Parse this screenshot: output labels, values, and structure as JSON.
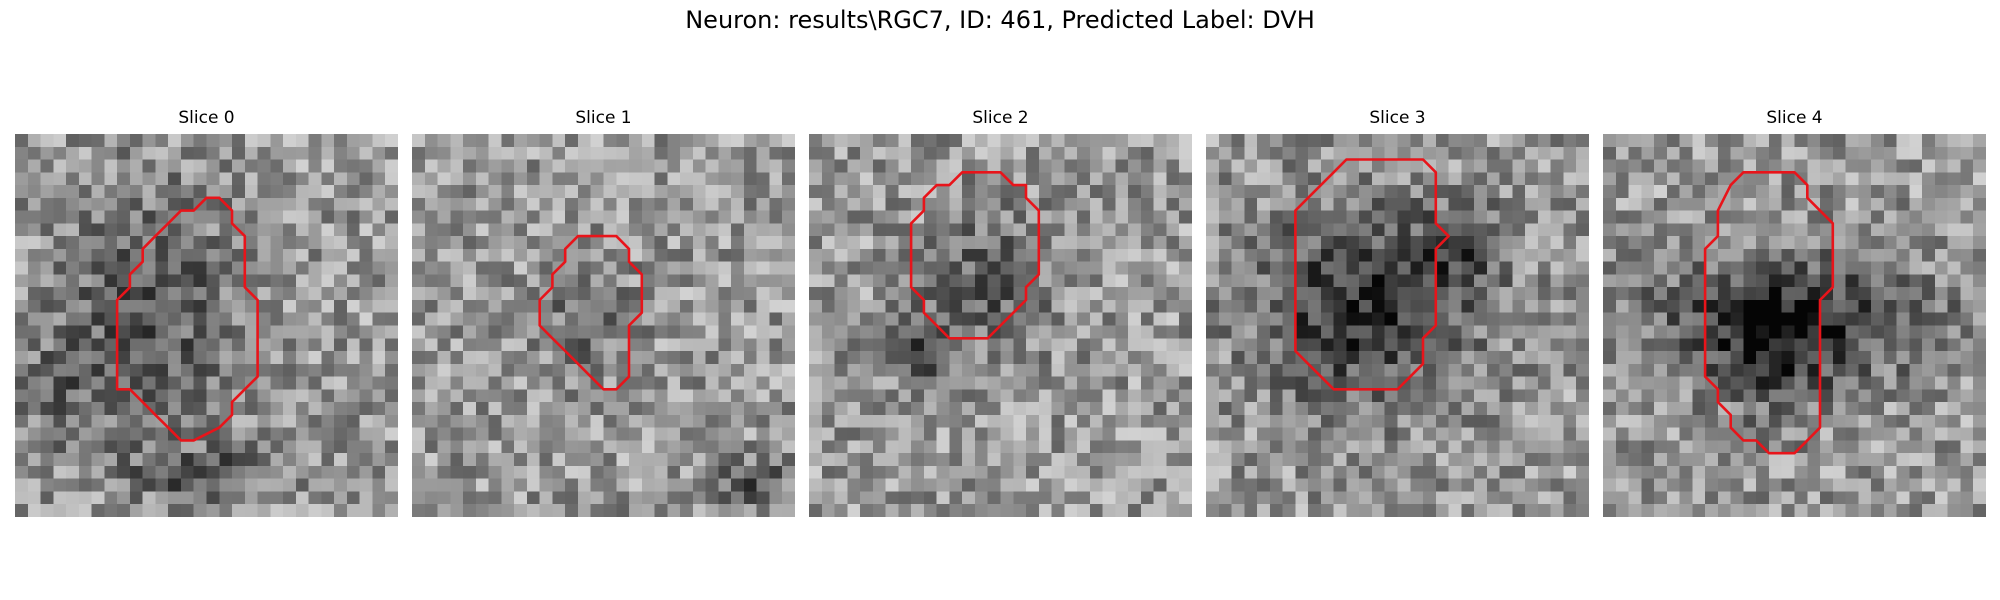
{
  "figure": {
    "title": "Neuron: results\\RGC7, ID: 461, Predicted Label: DVH",
    "contour_color": "#e8141a",
    "colormap": "gray",
    "grid_size": 30
  },
  "slices": [
    {
      "title": "Slice 0"
    },
    {
      "title": "Slice 1"
    },
    {
      "title": "Slice 2"
    },
    {
      "title": "Slice 3"
    },
    {
      "title": "Slice 4"
    }
  ]
}
